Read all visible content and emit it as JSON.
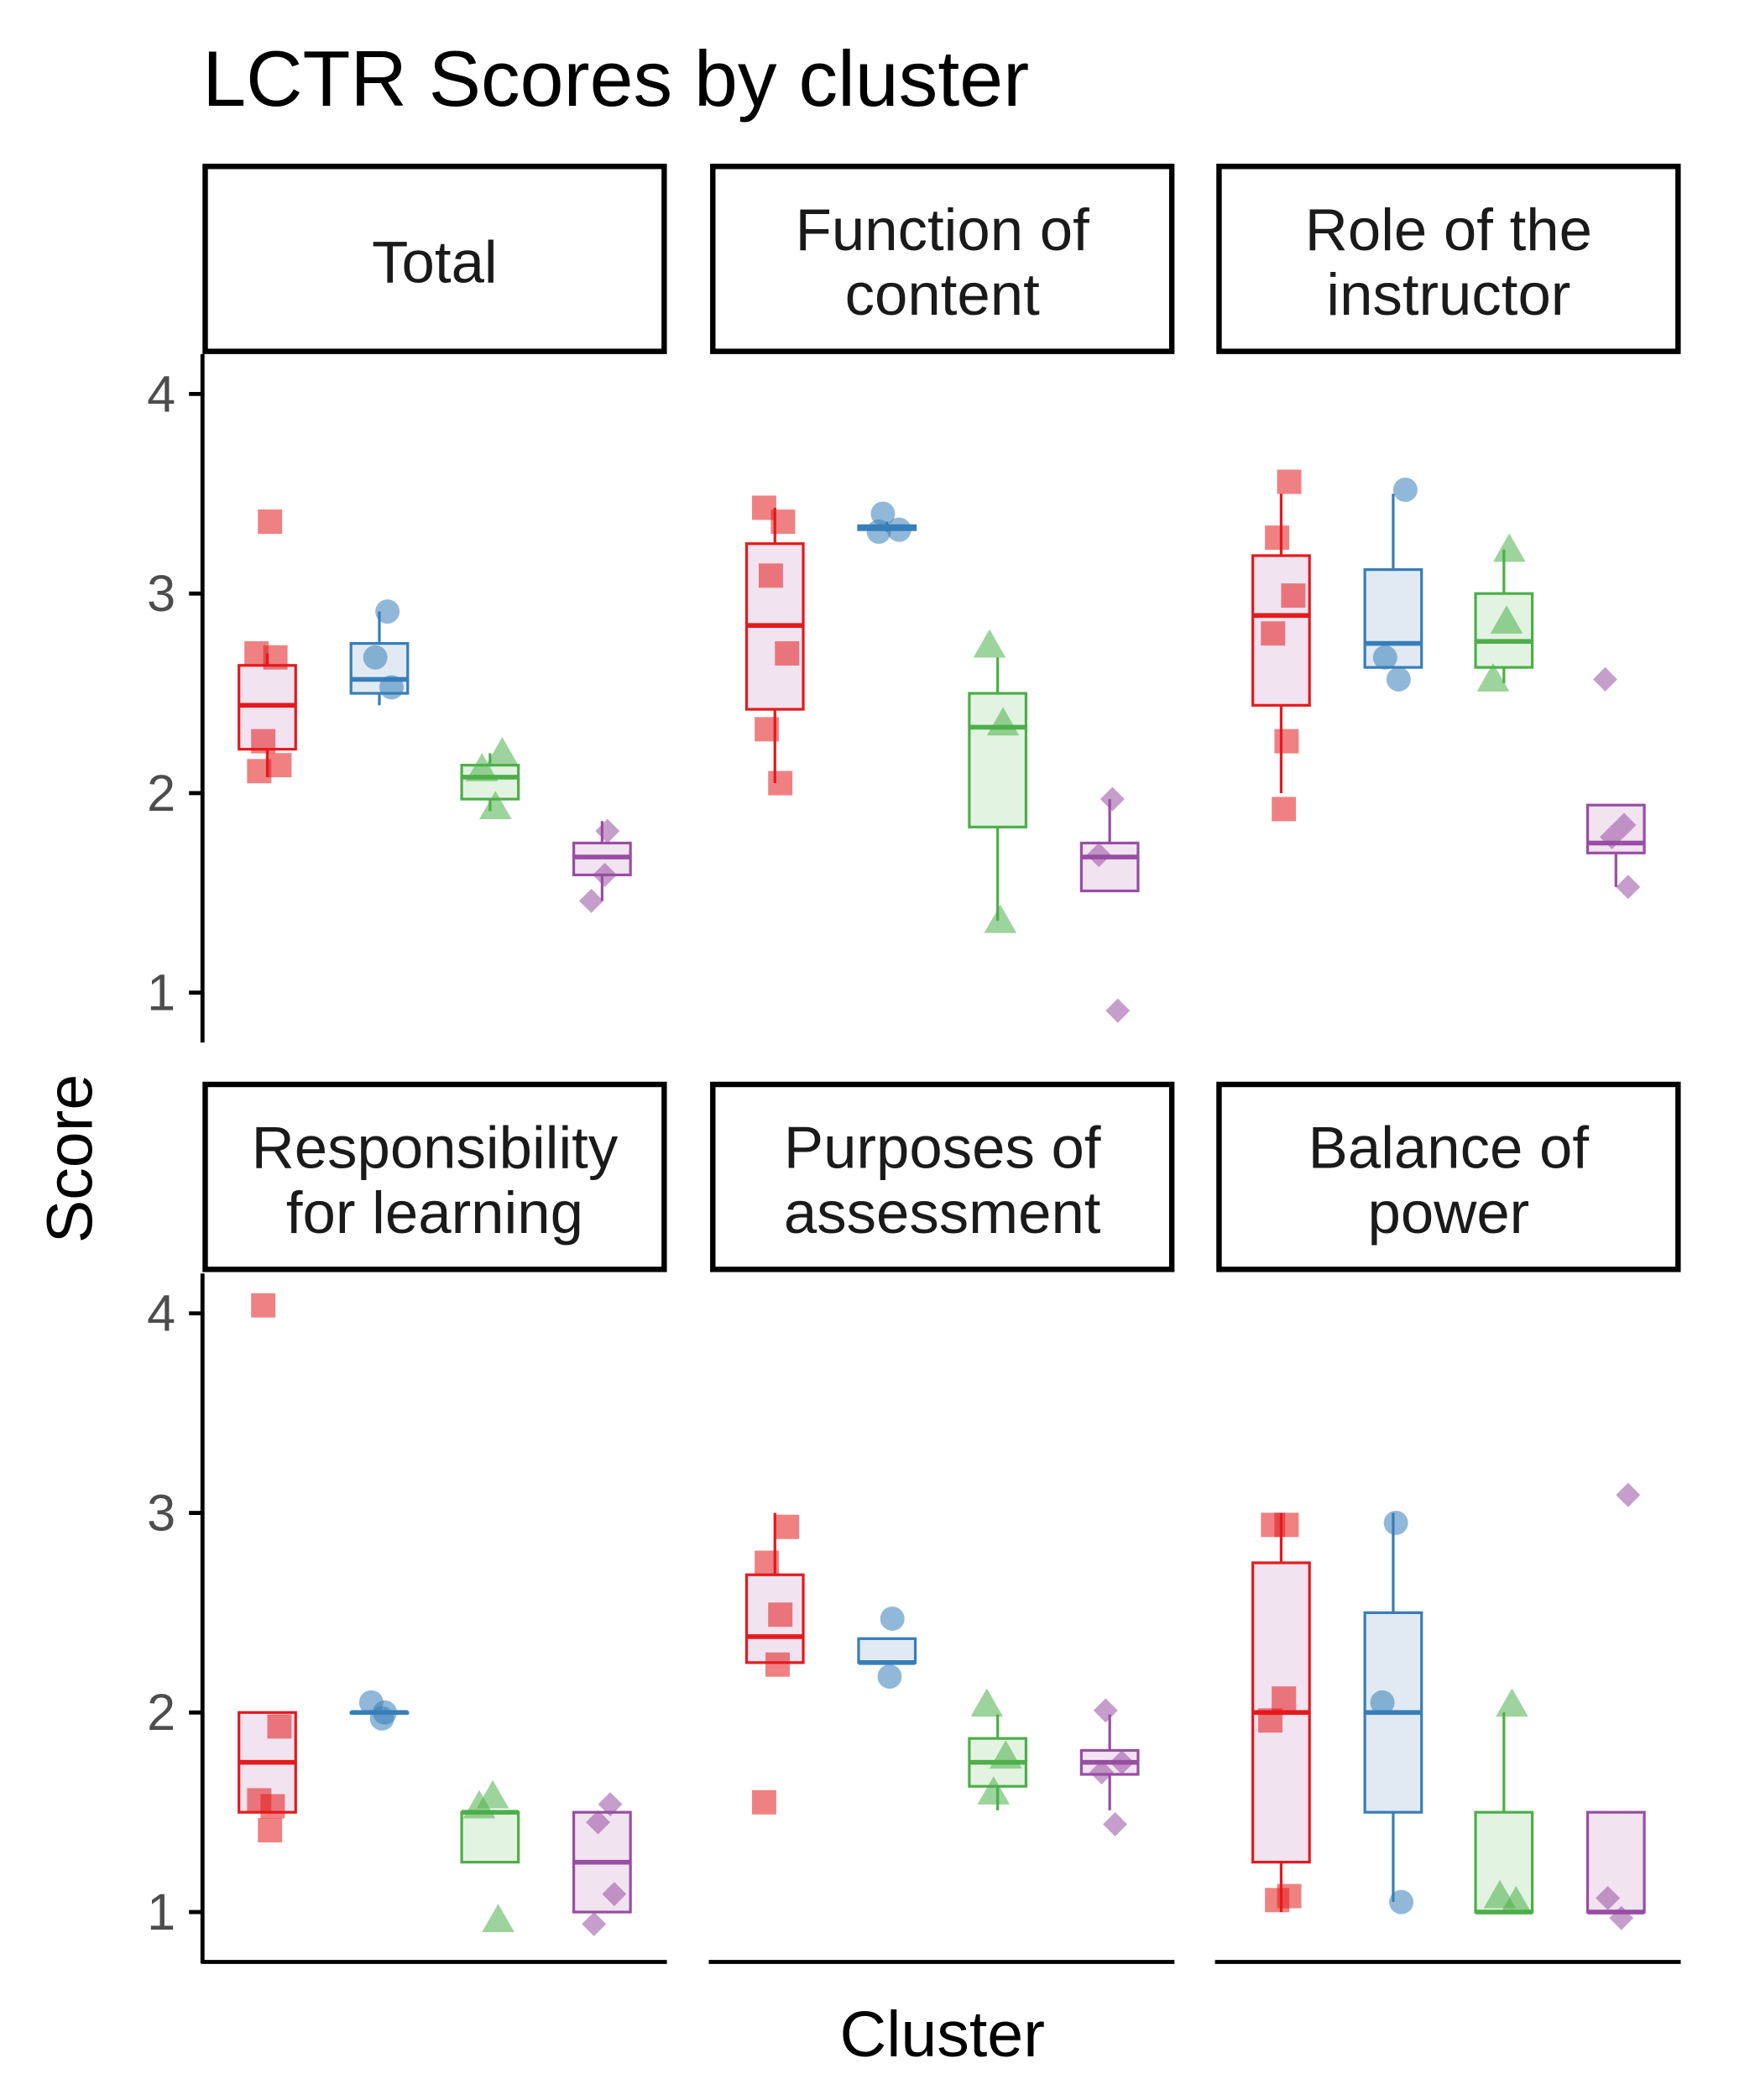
{
  "chart_data": {
    "type": "box",
    "title": "LCTR Scores by cluster",
    "xlabel": "Cluster",
    "ylabel": "Score",
    "ylim": [
      0.75,
      4.2
    ],
    "yticks": [
      "1",
      "2",
      "3",
      "4"
    ],
    "grid": false,
    "legend": "none",
    "cluster_colors": [
      "#E41A1C",
      "#377EB8",
      "#4DAF4A",
      "#984EA3"
    ],
    "cluster_fills": [
      "#F1E3F0",
      "#E1EAF3",
      "#E3F3E2",
      "#F1E3F0"
    ],
    "cluster_shapes": [
      "square",
      "circle",
      "triangle",
      "diamond"
    ],
    "facets": [
      {
        "lines": [
          "Total"
        ],
        "clusters": [
          {
            "box": [
              2.08,
              2.22,
              2.44,
              2.64,
              2.7
            ],
            "points": [
              3.36,
              2.7,
              2.68,
              2.26,
              2.14,
              2.11
            ]
          },
          {
            "box": [
              2.44,
              2.5,
              2.57,
              2.75,
              2.91
            ],
            "points": [
              2.91,
              2.68,
              2.53
            ]
          },
          {
            "box": [
              1.91,
              1.97,
              2.08,
              2.14,
              2.2
            ],
            "points": [
              2.2,
              2.12,
              1.93
            ]
          },
          {
            "box": [
              1.46,
              1.59,
              1.68,
              1.75,
              1.86
            ],
            "points": [
              1.81,
              1.59,
              1.46
            ]
          }
        ]
      },
      {
        "lines": [
          "Function of",
          "content"
        ],
        "clusters": [
          {
            "box": [
              2.05,
              2.42,
              2.84,
              3.25,
              3.43
            ],
            "points": [
              3.43,
              3.36,
              3.09,
              2.7,
              2.32,
              2.05
            ]
          },
          {
            "box": [
              3.31,
              3.32,
              3.33,
              3.34,
              3.36
            ],
            "points": [
              3.4,
              3.32,
              3.31
            ]
          },
          {
            "box": [
              1.36,
              1.83,
              2.33,
              2.5,
              2.68
            ],
            "points": [
              2.74,
              2.35,
              1.36
            ]
          },
          {
            "box": [
              1.51,
              1.51,
              1.68,
              1.75,
              1.97
            ],
            "points": [
              1.97,
              1.69,
              0.91
            ]
          }
        ]
      },
      {
        "lines": [
          "Role of the",
          "instructor"
        ],
        "clusters": [
          {
            "box": [
              2.0,
              2.44,
              2.89,
              3.19,
              3.5
            ],
            "points": [
              3.56,
              3.28,
              2.99,
              2.8,
              2.26,
              1.92
            ]
          },
          {
            "box": [
              2.63,
              2.63,
              2.75,
              3.12,
              3.5
            ],
            "points": [
              3.52,
              2.68,
              2.57
            ]
          },
          {
            "box": [
              2.55,
              2.63,
              2.76,
              3.0,
              3.22
            ],
            "points": [
              3.22,
              2.86,
              2.57
            ]
          },
          {
            "box": [
              1.53,
              1.7,
              1.75,
              1.94,
              1.94
            ],
            "points": [
              2.57,
              1.84,
              1.78,
              1.53
            ]
          }
        ]
      },
      {
        "lines": [
          "Responsibility",
          "for learning"
        ],
        "clusters": [
          {
            "box": [
              1.5,
              1.5,
              1.75,
              2.0,
              2.0
            ],
            "points": [
              4.04,
              1.93,
              1.56,
              1.53,
              1.41
            ]
          },
          {
            "box": [
              2.0,
              2.0,
              2.0,
              2.0,
              2.0
            ],
            "points": [
              2.05,
              2.0,
              1.97
            ]
          },
          {
            "box": [
              1.25,
              1.25,
              1.5,
              1.5,
              1.5
            ],
            "points": [
              1.58,
              1.53,
              0.96
            ]
          },
          {
            "box": [
              1.0,
              1.0,
              1.25,
              1.5,
              1.5
            ],
            "points": [
              1.54,
              1.45,
              1.09,
              0.94
            ]
          }
        ]
      },
      {
        "lines": [
          "Purposes of",
          "assessment"
        ],
        "clusters": [
          {
            "box": [
              2.25,
              2.25,
              2.38,
              2.69,
              3.0
            ],
            "points": [
              2.93,
              2.75,
              2.49,
              2.24,
              1.55
            ]
          },
          {
            "box": [
              2.25,
              2.25,
              2.25,
              2.37,
              2.37
            ],
            "points": [
              2.47,
              2.18
            ]
          },
          {
            "box": [
              1.51,
              1.63,
              1.75,
              1.87,
              1.99
            ],
            "points": [
              2.04,
              1.78,
              1.6
            ]
          },
          {
            "box": [
              1.51,
              1.69,
              1.75,
              1.81,
              1.99
            ],
            "points": [
              2.01,
              1.75,
              1.7,
              1.44
            ]
          }
        ]
      },
      {
        "lines": [
          "Balance of",
          "power"
        ],
        "clusters": [
          {
            "box": [
              1.0,
              1.25,
              2.0,
              2.75,
              3.0
            ],
            "points": [
              2.94,
              2.94,
              2.07,
              1.96,
              1.08,
              1.06
            ]
          },
          {
            "box": [
              1.05,
              1.5,
              2.0,
              2.5,
              3.0
            ],
            "points": [
              2.95,
              2.05,
              1.05
            ]
          },
          {
            "box": [
              1.0,
              1.0,
              1.0,
              1.5,
              2.0
            ],
            "points": [
              2.04,
              1.08,
              1.05
            ]
          },
          {
            "box": [
              1.0,
              1.0,
              1.0,
              1.5,
              1.5
            ],
            "points": [
              3.09,
              1.07,
              0.97
            ]
          }
        ]
      }
    ]
  }
}
